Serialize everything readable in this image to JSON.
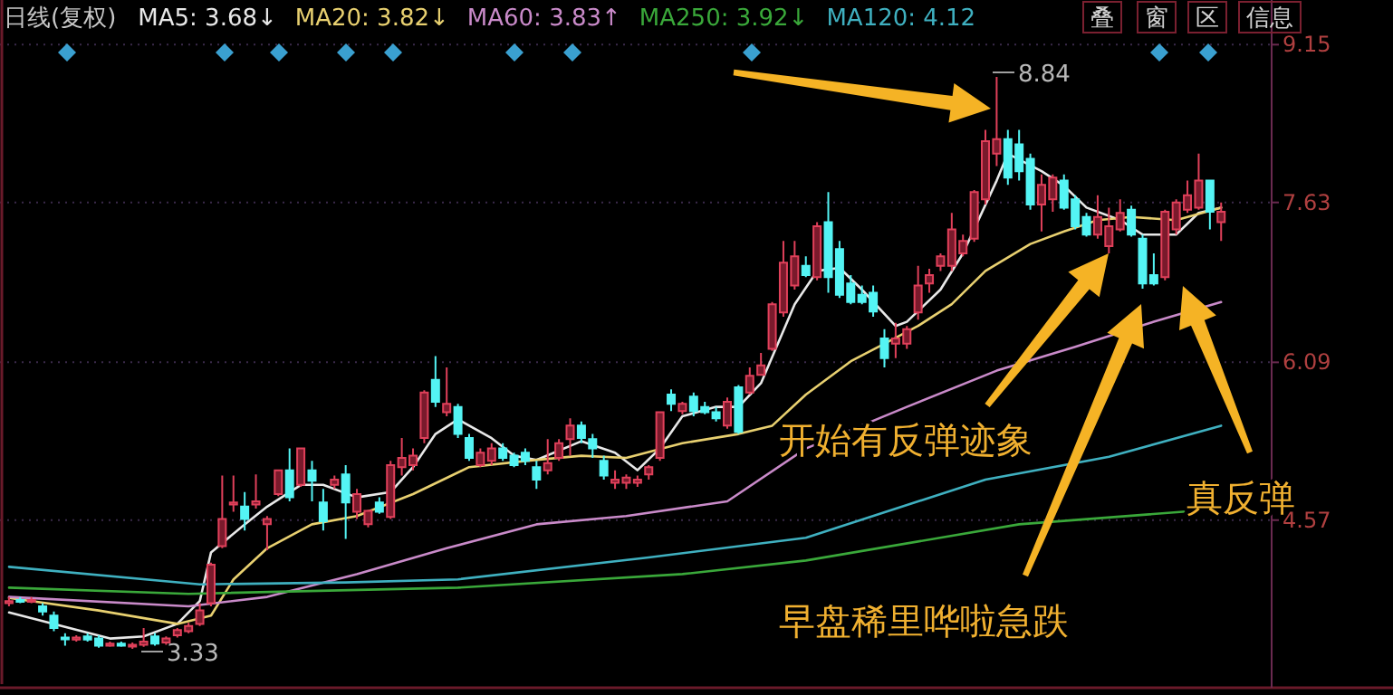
{
  "chart_data": {
    "type": "candlestick",
    "title": "日线(复权)",
    "categories": [
      null,
      null,
      null,
      null,
      null,
      null,
      null,
      null,
      null,
      null,
      null,
      null,
      null,
      null,
      null,
      null,
      null,
      null,
      null,
      null,
      null,
      null,
      null,
      null,
      null,
      null,
      null,
      null,
      null,
      null,
      null,
      null,
      null,
      null,
      null,
      null,
      null,
      null,
      null,
      null,
      null,
      null,
      null,
      null,
      null,
      null,
      null,
      null,
      null,
      null,
      null,
      null,
      null,
      null,
      null,
      null,
      null,
      null,
      null,
      null,
      null,
      null,
      null,
      null,
      null,
      null,
      null,
      null,
      null,
      null,
      null,
      null,
      null,
      null,
      null,
      null,
      null,
      null,
      null,
      null,
      null,
      null,
      null,
      null,
      null,
      null,
      null,
      null,
      null,
      null,
      null,
      null,
      null,
      null,
      null,
      null,
      null,
      null,
      null,
      null,
      null,
      null,
      null,
      null,
      null,
      null,
      null,
      null,
      null
    ],
    "ohlc": [
      [
        3.77,
        3.83,
        3.74,
        3.79
      ],
      [
        3.8,
        3.83,
        3.77,
        3.79
      ],
      [
        3.79,
        3.83,
        3.77,
        3.8
      ],
      [
        3.74,
        3.77,
        3.65,
        3.69
      ],
      [
        3.65,
        3.69,
        3.5,
        3.53
      ],
      [
        3.44,
        3.48,
        3.36,
        3.43
      ],
      [
        3.42,
        3.46,
        3.4,
        3.44
      ],
      [
        3.45,
        3.48,
        3.4,
        3.42
      ],
      [
        3.43,
        3.46,
        3.34,
        3.36
      ],
      [
        3.36,
        3.4,
        3.35,
        3.38
      ],
      [
        3.38,
        3.4,
        3.35,
        3.36
      ],
      [
        3.36,
        3.39,
        3.33,
        3.37
      ],
      [
        3.37,
        3.53,
        3.35,
        3.4
      ],
      [
        3.45,
        3.48,
        3.36,
        3.38
      ],
      [
        3.39,
        3.45,
        3.37,
        3.43
      ],
      [
        3.46,
        3.53,
        3.44,
        3.51
      ],
      [
        3.5,
        3.58,
        3.48,
        3.55
      ],
      [
        3.57,
        3.77,
        3.55,
        3.7
      ],
      [
        3.77,
        4.16,
        3.74,
        4.14
      ],
      [
        4.32,
        5.0,
        4.3,
        4.58
      ],
      [
        4.72,
        5.0,
        4.65,
        4.74
      ],
      [
        4.7,
        4.84,
        4.47,
        4.58
      ],
      [
        4.72,
        5.01,
        4.68,
        4.75
      ],
      [
        4.53,
        4.61,
        4.28,
        4.58
      ],
      [
        4.82,
        5.05,
        4.8,
        5.05
      ],
      [
        5.05,
        5.26,
        4.75,
        4.79
      ],
      [
        4.91,
        5.26,
        4.89,
        5.26
      ],
      [
        5.05,
        5.14,
        4.75,
        4.95
      ],
      [
        4.74,
        4.87,
        4.47,
        4.56
      ],
      [
        4.91,
        5.0,
        4.87,
        4.96
      ],
      [
        5.01,
        5.1,
        4.39,
        4.74
      ],
      [
        4.65,
        4.87,
        4.58,
        4.82
      ],
      [
        4.53,
        4.67,
        4.5,
        4.66
      ],
      [
        4.74,
        4.79,
        4.63,
        4.65
      ],
      [
        4.6,
        5.14,
        4.58,
        5.1
      ],
      [
        5.08,
        5.36,
        5.0,
        5.17
      ],
      [
        5.1,
        5.26,
        5.05,
        5.19
      ],
      [
        5.36,
        5.82,
        5.31,
        5.8
      ],
      [
        5.92,
        6.15,
        5.66,
        5.71
      ],
      [
        5.61,
        6.04,
        5.57,
        5.69
      ],
      [
        5.66,
        5.69,
        5.36,
        5.4
      ],
      [
        5.36,
        5.4,
        5.14,
        5.17
      ],
      [
        5.1,
        5.26,
        5.08,
        5.22
      ],
      [
        5.14,
        5.31,
        5.1,
        5.26
      ],
      [
        5.26,
        5.31,
        5.14,
        5.17
      ],
      [
        5.19,
        5.22,
        5.08,
        5.1
      ],
      [
        5.22,
        5.26,
        5.1,
        5.14
      ],
      [
        5.08,
        5.14,
        4.87,
        4.96
      ],
      [
        5.05,
        5.35,
        5.01,
        5.12
      ],
      [
        5.17,
        5.35,
        5.14,
        5.31
      ],
      [
        5.35,
        5.55,
        5.19,
        5.48
      ],
      [
        5.48,
        5.52,
        5.31,
        5.36
      ],
      [
        5.35,
        5.4,
        5.17,
        5.26
      ],
      [
        5.14,
        5.19,
        4.96,
        5.0
      ],
      [
        4.93,
        5.05,
        4.87,
        4.96
      ],
      [
        4.93,
        5.01,
        4.87,
        4.98
      ],
      [
        4.93,
        5.0,
        4.89,
        4.96
      ],
      [
        5.01,
        5.1,
        4.96,
        5.08
      ],
      [
        5.17,
        5.61,
        5.14,
        5.61
      ],
      [
        5.78,
        5.83,
        5.62,
        5.69
      ],
      [
        5.62,
        5.71,
        5.59,
        5.69
      ],
      [
        5.76,
        5.8,
        5.57,
        5.62
      ],
      [
        5.66,
        5.71,
        5.59,
        5.61
      ],
      [
        5.61,
        5.66,
        5.52,
        5.55
      ],
      [
        5.48,
        5.75,
        5.45,
        5.71
      ],
      [
        5.85,
        5.87,
        5.4,
        5.42
      ],
      [
        5.8,
        6.04,
        5.78,
        5.96
      ],
      [
        5.97,
        6.18,
        5.96,
        6.06
      ],
      [
        6.22,
        6.67,
        6.2,
        6.65
      ],
      [
        6.57,
        7.26,
        6.53,
        7.05
      ],
      [
        6.83,
        7.26,
        6.79,
        7.11
      ],
      [
        7.02,
        7.11,
        6.91,
        6.93
      ],
      [
        6.91,
        7.44,
        6.88,
        7.4
      ],
      [
        7.44,
        7.73,
        6.76,
        6.91
      ],
      [
        7.18,
        7.26,
        6.71,
        6.74
      ],
      [
        6.85,
        6.93,
        6.65,
        6.67
      ],
      [
        6.74,
        6.83,
        6.65,
        6.67
      ],
      [
        6.76,
        6.83,
        6.53,
        6.58
      ],
      [
        6.32,
        6.41,
        6.04,
        6.13
      ],
      [
        6.27,
        6.47,
        6.13,
        6.32
      ],
      [
        6.27,
        6.44,
        6.22,
        6.41
      ],
      [
        6.57,
        7.02,
        6.5,
        6.83
      ],
      [
        6.85,
        6.99,
        6.76,
        6.93
      ],
      [
        7.02,
        7.14,
        6.97,
        7.11
      ],
      [
        7.02,
        7.53,
        6.97,
        7.37
      ],
      [
        7.14,
        7.32,
        7.11,
        7.26
      ],
      [
        7.28,
        7.75,
        7.25,
        7.73
      ],
      [
        7.66,
        8.33,
        7.61,
        8.22
      ],
      [
        8.1,
        8.84,
        7.98,
        8.24
      ],
      [
        8.24,
        8.33,
        7.8,
        7.87
      ],
      [
        8.19,
        8.33,
        7.84,
        7.93
      ],
      [
        8.05,
        8.1,
        7.56,
        7.61
      ],
      [
        7.61,
        7.9,
        7.35,
        7.8
      ],
      [
        7.66,
        7.9,
        7.54,
        7.87
      ],
      [
        7.84,
        7.9,
        7.56,
        7.58
      ],
      [
        7.66,
        7.7,
        7.37,
        7.4
      ],
      [
        7.49,
        7.53,
        7.3,
        7.32
      ],
      [
        7.32,
        7.7,
        7.28,
        7.49
      ],
      [
        7.21,
        7.58,
        7.14,
        7.4
      ],
      [
        7.37,
        7.66,
        7.35,
        7.53
      ],
      [
        7.56,
        7.6,
        7.3,
        7.32
      ],
      [
        7.28,
        7.32,
        6.8,
        6.85
      ],
      [
        6.93,
        7.14,
        6.83,
        6.85
      ],
      [
        6.91,
        7.56,
        6.88,
        7.54
      ],
      [
        7.37,
        7.66,
        7.32,
        7.63
      ],
      [
        7.56,
        7.84,
        7.53,
        7.7
      ],
      [
        7.58,
        8.1,
        7.56,
        7.84
      ],
      [
        7.84,
        7.84,
        7.37,
        7.54
      ],
      [
        7.44,
        7.63,
        7.26,
        7.54
      ]
    ],
    "series": [
      {
        "name": "MA5: 3.68↓",
        "color": "#e8e8e8",
        "type": "line",
        "values": [
          3.68,
          null,
          null,
          null,
          3.57,
          null,
          null,
          null,
          null,
          3.43,
          null,
          null,
          3.45,
          null,
          null,
          3.57,
          null,
          3.79,
          4.26,
          null,
          null,
          4.53,
          null,
          4.7,
          null,
          null,
          4.91,
          null,
          4.91,
          null,
          null,
          4.79,
          null,
          null,
          4.84,
          null,
          5.08,
          null,
          5.4,
          null,
          5.54,
          null,
          null,
          5.36,
          null,
          5.19,
          null,
          5.15,
          null,
          null,
          null,
          5.33,
          null,
          null,
          5.22,
          null,
          5.05,
          null,
          5.26,
          null,
          5.57,
          null,
          null,
          5.66,
          null,
          5.66,
          null,
          5.89,
          null,
          null,
          6.65,
          null,
          6.97,
          null,
          7.0,
          null,
          6.79,
          null,
          null,
          6.44,
          6.48,
          null,
          null,
          6.79,
          null,
          7.14,
          null,
          null,
          7.84,
          8.1,
          null,
          null,
          7.93,
          null,
          7.79,
          null,
          7.58,
          null,
          null,
          7.46,
          null,
          7.32,
          null,
          null,
          7.32,
          null,
          7.53,
          null,
          7.58
        ]
      },
      {
        "name": "MA20: 3.82↓",
        "color": "#e8d070",
        "type": "line",
        "values": [
          3.82,
          null,
          null,
          null,
          null,
          null,
          null,
          null,
          3.7,
          null,
          null,
          null,
          null,
          null,
          null,
          3.57,
          null,
          null,
          3.65,
          null,
          4.0,
          null,
          null,
          4.3,
          null,
          null,
          null,
          4.53,
          null,
          null,
          null,
          4.61,
          null,
          null,
          null,
          null,
          4.82,
          null,
          null,
          null,
          null,
          5.08,
          null,
          null,
          null,
          null,
          5.14,
          null,
          null,
          null,
          null,
          5.19,
          null,
          null,
          null,
          5.17,
          null,
          null,
          null,
          null,
          5.31,
          null,
          null,
          null,
          null,
          5.4,
          null,
          null,
          5.48,
          null,
          null,
          5.78,
          null,
          null,
          null,
          6.1,
          null,
          null,
          6.27,
          null,
          null,
          6.44,
          null,
          null,
          6.65,
          null,
          null,
          6.97,
          null,
          null,
          null,
          7.23,
          null,
          null,
          7.35,
          null,
          null,
          7.46,
          null,
          null,
          7.49,
          null,
          null,
          null,
          7.46,
          null,
          null,
          null,
          7.58
        ]
      },
      {
        "name": "MA60: 3.83↑",
        "color": "#c98ac9",
        "type": "line",
        "values": [
          3.83,
          null,
          null,
          null,
          null,
          null,
          null,
          null,
          null,
          null,
          null,
          null,
          null,
          null,
          null,
          null,
          3.74,
          null,
          null,
          null,
          null,
          null,
          null,
          3.83,
          null,
          null,
          null,
          null,
          null,
          null,
          null,
          4.05,
          null,
          null,
          null,
          null,
          null,
          null,
          null,
          4.3,
          null,
          null,
          null,
          null,
          null,
          null,
          null,
          4.53,
          null,
          null,
          null,
          null,
          null,
          null,
          null,
          4.61,
          null,
          null,
          null,
          null,
          null,
          null,
          null,
          null,
          4.75,
          null,
          null,
          null,
          null,
          null,
          null,
          5.26,
          null,
          null,
          null,
          null,
          null,
          null,
          null,
          null,
          5.66,
          null,
          null,
          null,
          null,
          null,
          null,
          null,
          6.01,
          null,
          null,
          null,
          null,
          null,
          null,
          6.24,
          null,
          null,
          null,
          null,
          null,
          null,
          6.48,
          null,
          null,
          null,
          null,
          null,
          6.67
        ]
      },
      {
        "name": "MA250: 3.92↓",
        "color": "#3aa83a",
        "type": "line",
        "values": [
          3.92,
          null,
          null,
          null,
          null,
          null,
          null,
          null,
          null,
          null,
          null,
          null,
          null,
          null,
          null,
          null,
          3.86,
          null,
          null,
          null,
          null,
          null,
          null,
          null,
          null,
          null,
          null,
          null,
          null,
          null,
          null,
          null,
          null,
          null,
          null,
          null,
          null,
          null,
          null,
          null,
          3.92,
          null,
          null,
          null,
          null,
          null,
          null,
          null,
          null,
          null,
          null,
          null,
          null,
          null,
          null,
          null,
          null,
          null,
          null,
          null,
          4.05,
          null,
          null,
          null,
          null,
          null,
          null,
          null,
          null,
          null,
          null,
          4.18,
          null,
          null,
          null,
          null,
          null,
          null,
          null,
          null,
          null,
          null,
          null,
          null,
          null,
          null,
          null,
          null,
          null,
          null,
          4.53,
          null,
          null,
          null,
          null,
          null,
          null,
          null,
          null,
          null,
          null,
          null,
          null,
          null,
          null,
          null,
          null,
          null,
          4.68
        ]
      },
      {
        "name": "MA120: 4.12",
        "color": "#3fb0c0",
        "type": "line",
        "values": [
          4.12,
          null,
          null,
          null,
          null,
          null,
          null,
          null,
          null,
          null,
          null,
          null,
          null,
          null,
          null,
          null,
          null,
          3.95,
          null,
          null,
          null,
          null,
          null,
          null,
          null,
          null,
          null,
          null,
          null,
          null,
          3.97,
          null,
          null,
          null,
          null,
          null,
          null,
          null,
          null,
          null,
          4.0,
          null,
          null,
          null,
          null,
          null,
          null,
          null,
          null,
          null,
          null,
          null,
          null,
          null,
          null,
          null,
          null,
          4.21,
          null,
          null,
          null,
          null,
          null,
          null,
          null,
          null,
          null,
          null,
          null,
          null,
          null,
          4.4,
          null,
          null,
          null,
          null,
          null,
          null,
          null,
          null,
          null,
          null,
          null,
          null,
          null,
          null,
          null,
          4.96,
          null,
          null,
          null,
          null,
          null,
          null,
          null,
          null,
          null,
          null,
          5.18,
          null,
          null,
          null,
          null,
          null,
          null,
          null,
          null,
          null,
          5.48
        ]
      }
    ],
    "ylim": [
      2.99,
      9.58
    ],
    "yticks": [
      4.57,
      6.09,
      7.63,
      9.15
    ],
    "grid": "y",
    "legend": "top left",
    "annotations": [
      "开始有反弹迹象",
      "真反弹",
      "早盘稀里哗啦急跌",
      "叠",
      "窗",
      "区",
      "信息",
      "8.84",
      "3.33"
    ]
  }
}
